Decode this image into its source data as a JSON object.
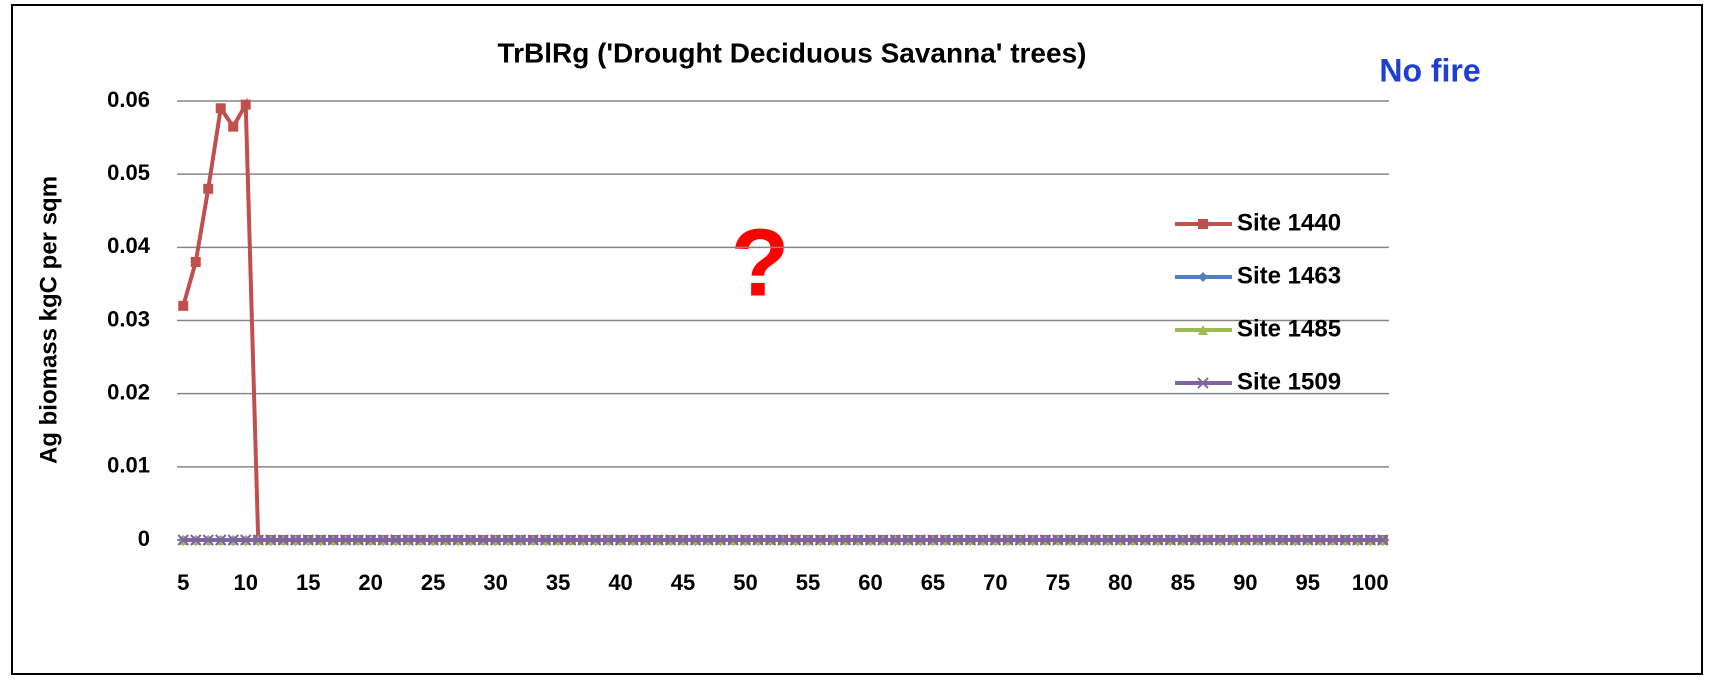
{
  "chart_data": {
    "type": "line",
    "title": "TrBlRg ('Drought Deciduous Savanna' trees)",
    "y_label": "Ag biomass kgC per sqm",
    "annotations": [
      "No fire",
      "?"
    ],
    "x": [
      5,
      6,
      7,
      8,
      9,
      10,
      11,
      12,
      13,
      14,
      15,
      16,
      17,
      18,
      19,
      20,
      21,
      22,
      23,
      24,
      25,
      26,
      27,
      28,
      29,
      30,
      31,
      32,
      33,
      34,
      35,
      36,
      37,
      38,
      39,
      40,
      41,
      42,
      43,
      44,
      45,
      46,
      47,
      48,
      49,
      50,
      51,
      52,
      53,
      54,
      55,
      56,
      57,
      58,
      59,
      60,
      61,
      62,
      63,
      64,
      65,
      66,
      67,
      68,
      69,
      70,
      71,
      72,
      73,
      74,
      75,
      76,
      77,
      78,
      79,
      80,
      81,
      82,
      83,
      84,
      85,
      86,
      87,
      88,
      89,
      90,
      91,
      92,
      93,
      94,
      95,
      96,
      97,
      98,
      99,
      100,
      101
    ],
    "xlim": [
      4.5,
      101.5
    ],
    "xticks": [
      5,
      10,
      15,
      20,
      25,
      30,
      35,
      40,
      45,
      50,
      55,
      60,
      65,
      70,
      75,
      80,
      85,
      90,
      95,
      100
    ],
    "ylim": [
      0,
      0.06
    ],
    "yticks": [
      0,
      0.01,
      0.02,
      0.03,
      0.04,
      0.05,
      0.06
    ],
    "grid": true,
    "series": [
      {
        "name": "Site 1440",
        "color": "#c0504d",
        "marker": "square",
        "values": [
          0.032,
          0.038,
          0.048,
          0.059,
          0.0565,
          0.0595,
          0,
          0,
          0,
          0,
          0,
          0,
          0,
          0,
          0,
          0,
          0,
          0,
          0,
          0,
          0,
          0,
          0,
          0,
          0,
          0,
          0,
          0,
          0,
          0,
          0,
          0,
          0,
          0,
          0,
          0,
          0,
          0,
          0,
          0,
          0,
          0,
          0,
          0,
          0,
          0,
          0,
          0,
          0,
          0,
          0,
          0,
          0,
          0,
          0,
          0,
          0,
          0,
          0,
          0,
          0,
          0,
          0,
          0,
          0,
          0,
          0,
          0,
          0,
          0,
          0,
          0,
          0,
          0,
          0,
          0,
          0,
          0,
          0,
          0,
          0,
          0,
          0,
          0,
          0,
          0,
          0,
          0,
          0,
          0,
          0,
          0,
          0,
          0,
          0,
          0,
          0
        ]
      },
      {
        "name": "Site 1463",
        "color": "#4f81bd",
        "marker": "diamond",
        "values": [
          0,
          0,
          0,
          0,
          0,
          0,
          0,
          0,
          0,
          0,
          0,
          0,
          0,
          0,
          0,
          0,
          0,
          0,
          0,
          0,
          0,
          0,
          0,
          0,
          0,
          0,
          0,
          0,
          0,
          0,
          0,
          0,
          0,
          0,
          0,
          0,
          0,
          0,
          0,
          0,
          0,
          0,
          0,
          0,
          0,
          0,
          0,
          0,
          0,
          0,
          0,
          0,
          0,
          0,
          0,
          0,
          0,
          0,
          0,
          0,
          0,
          0,
          0,
          0,
          0,
          0,
          0,
          0,
          0,
          0,
          0,
          0,
          0,
          0,
          0,
          0,
          0,
          0,
          0,
          0,
          0,
          0,
          0,
          0,
          0,
          0,
          0,
          0,
          0,
          0,
          0,
          0,
          0,
          0,
          0,
          0,
          0
        ]
      },
      {
        "name": "Site 1485",
        "color": "#9bbb59",
        "marker": "triangle",
        "values": [
          0,
          0,
          0,
          0,
          0,
          0,
          0,
          0,
          0,
          0,
          0,
          0,
          0,
          0,
          0,
          0,
          0,
          0,
          0,
          0,
          0,
          0,
          0,
          0,
          0,
          0,
          0,
          0,
          0,
          0,
          0,
          0,
          0,
          0,
          0,
          0,
          0,
          0,
          0,
          0,
          0,
          0,
          0,
          0,
          0,
          0,
          0,
          0,
          0,
          0,
          0,
          0,
          0,
          0,
          0,
          0,
          0,
          0,
          0,
          0,
          0,
          0,
          0,
          0,
          0,
          0,
          0,
          0,
          0,
          0,
          0,
          0,
          0,
          0,
          0,
          0,
          0,
          0,
          0,
          0,
          0,
          0,
          0,
          0,
          0,
          0,
          0,
          0,
          0,
          0,
          0,
          0,
          0,
          0,
          0,
          0,
          0
        ]
      },
      {
        "name": "Site 1509",
        "color": "#8064a2",
        "marker": "x",
        "values": [
          0,
          0,
          0,
          0,
          0,
          0,
          0,
          0,
          0,
          0,
          0,
          0,
          0,
          0,
          0,
          0,
          0,
          0,
          0,
          0,
          0,
          0,
          0,
          0,
          0,
          0,
          0,
          0,
          0,
          0,
          0,
          0,
          0,
          0,
          0,
          0,
          0,
          0,
          0,
          0,
          0,
          0,
          0,
          0,
          0,
          0,
          0,
          0,
          0,
          0,
          0,
          0,
          0,
          0,
          0,
          0,
          0,
          0,
          0,
          0,
          0,
          0,
          0,
          0,
          0,
          0,
          0,
          0,
          0,
          0,
          0,
          0,
          0,
          0,
          0,
          0,
          0,
          0,
          0,
          0,
          0,
          0,
          0,
          0,
          0,
          0,
          0,
          0,
          0,
          0,
          0,
          0,
          0,
          0,
          0,
          0,
          0
        ]
      }
    ]
  }
}
